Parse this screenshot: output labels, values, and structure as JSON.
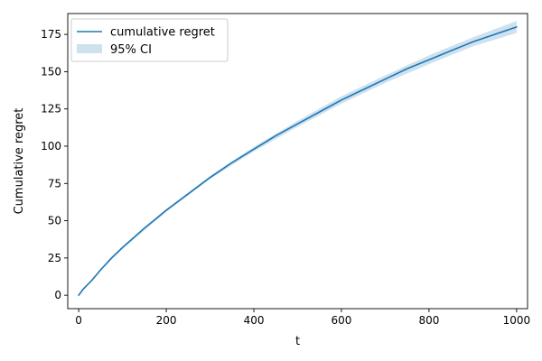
{
  "chart_data": {
    "type": "line",
    "xlabel": "t",
    "ylabel": "Cumulative regret",
    "xlim": [
      -25,
      1025
    ],
    "ylim": [
      -9,
      189
    ],
    "xticks": [
      0,
      200,
      400,
      600,
      800,
      1000
    ],
    "yticks": [
      0,
      25,
      50,
      75,
      100,
      125,
      150,
      175
    ],
    "grid": false,
    "legend": {
      "placement": "top-left",
      "entries": [
        "cumulative regret",
        "95% CI"
      ]
    },
    "colors": {
      "line": "#1f77b4",
      "band": "#1f77b4"
    },
    "series": [
      {
        "name": "cumulative regret",
        "x": [
          0,
          10,
          20,
          30,
          50,
          75,
          100,
          150,
          200,
          250,
          300,
          350,
          400,
          450,
          500,
          550,
          600,
          650,
          700,
          750,
          800,
          850,
          900,
          950,
          1000
        ],
        "y": [
          0,
          4,
          7,
          10,
          17,
          25,
          32,
          45,
          57,
          68,
          79,
          89,
          98,
          107,
          115,
          123,
          131,
          138,
          145,
          152,
          158,
          164,
          170,
          175,
          180
        ]
      }
    ],
    "ci_band": {
      "name": "95% CI",
      "x": [
        0,
        50,
        100,
        200,
        300,
        400,
        500,
        600,
        700,
        800,
        900,
        1000
      ],
      "lower": [
        0,
        16.5,
        31,
        56,
        78,
        96.5,
        113,
        128.5,
        142.5,
        155,
        167,
        176
      ],
      "upper": [
        0.5,
        17.5,
        33,
        58,
        80,
        99.5,
        117,
        133.5,
        147.5,
        161,
        173,
        184
      ]
    }
  }
}
